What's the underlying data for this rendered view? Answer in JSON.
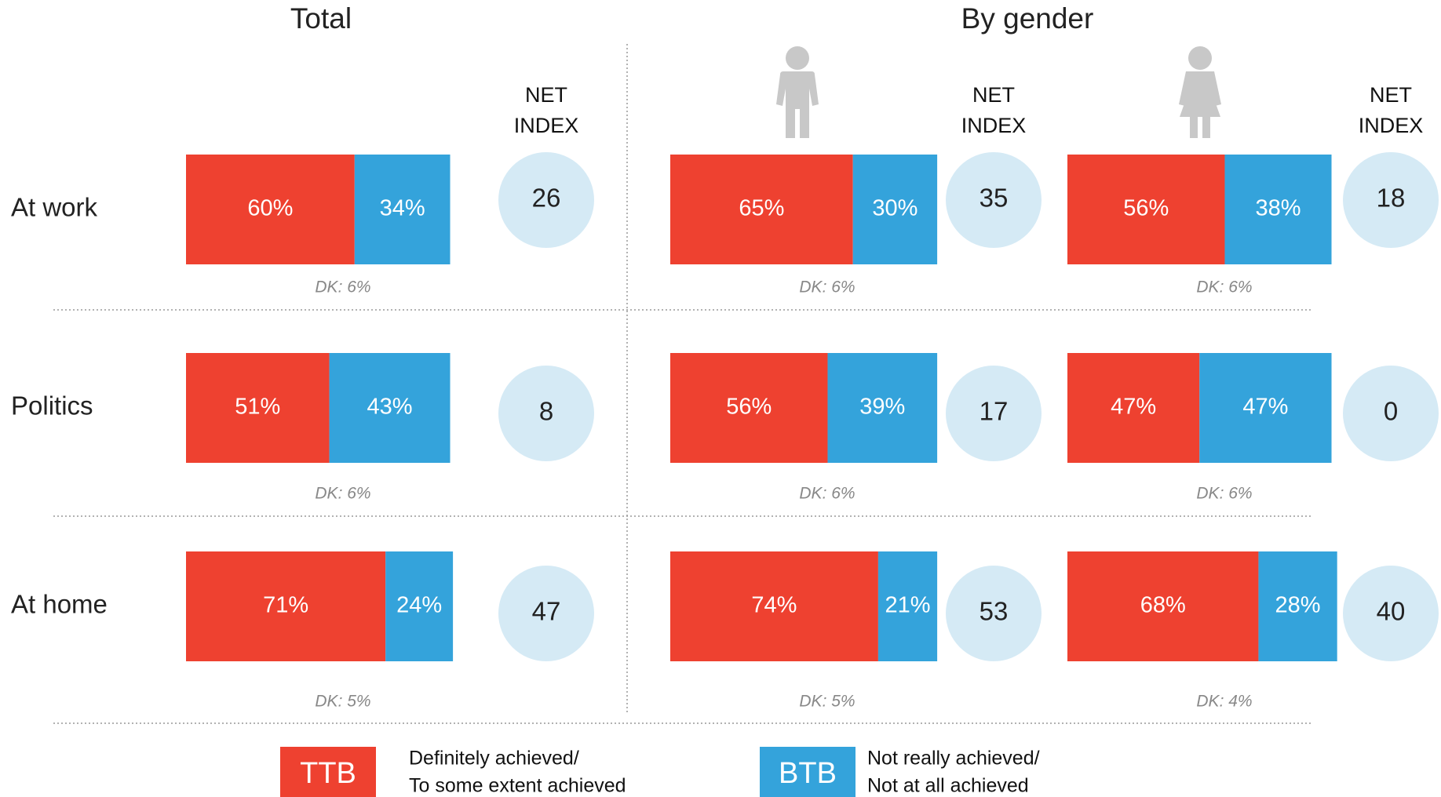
{
  "chart_data": {
    "type": "stacked_bar",
    "categories": [
      "At work",
      "Politics",
      "At home"
    ],
    "xlim": [
      0,
      100
    ],
    "gender_title": "By gender",
    "net_label": [
      "NET",
      "INDEX"
    ],
    "panels": [
      {
        "title": "Total",
        "series": [
          {
            "name": "TTB",
            "color": "#ee4130",
            "values": [
              60,
              51,
              71
            ],
            "value_labels": [
              "60%",
              "51%",
              "71%"
            ]
          },
          {
            "name": "BTB",
            "color": "#34a3db",
            "values": [
              34,
              43,
              24
            ],
            "value_labels": [
              "34%",
              "43%",
              "24%"
            ]
          }
        ],
        "net_index": [
          26,
          8,
          47
        ],
        "dk": [
          "DK: 6%",
          "DK: 6%",
          "DK: 5%"
        ]
      },
      {
        "series": [
          {
            "name": "TTB",
            "color": "#ee4130",
            "values": [
              65,
              56,
              74
            ],
            "value_labels": [
              "65%",
              "56%",
              "74%"
            ]
          },
          {
            "name": "BTB",
            "color": "#34a3db",
            "values": [
              30,
              39,
              21
            ],
            "value_labels": [
              "30%",
              "39%",
              "21%"
            ]
          }
        ],
        "net_index": [
          35,
          17,
          53
        ],
        "dk": [
          "DK: 6%",
          "DK: 6%",
          "DK: 5%"
        ]
      },
      {
        "series": [
          {
            "name": "TTB",
            "color": "#ee4130",
            "values": [
              56,
              47,
              68
            ],
            "value_labels": [
              "56%",
              "47%",
              "68%"
            ]
          },
          {
            "name": "BTB",
            "color": "#34a3db",
            "values": [
              38,
              47,
              28
            ],
            "value_labels": [
              "38%",
              "47%",
              "28%"
            ]
          }
        ],
        "net_index": [
          18,
          0,
          40
        ],
        "dk": [
          "DK: 6%",
          "DK: 6%",
          "DK: 4%"
        ]
      }
    ],
    "legend_descriptions": [
      [
        "Definitely achieved/",
        "To some extent achieved"
      ],
      [
        "Not really achieved/",
        "Not at all achieved"
      ]
    ]
  }
}
